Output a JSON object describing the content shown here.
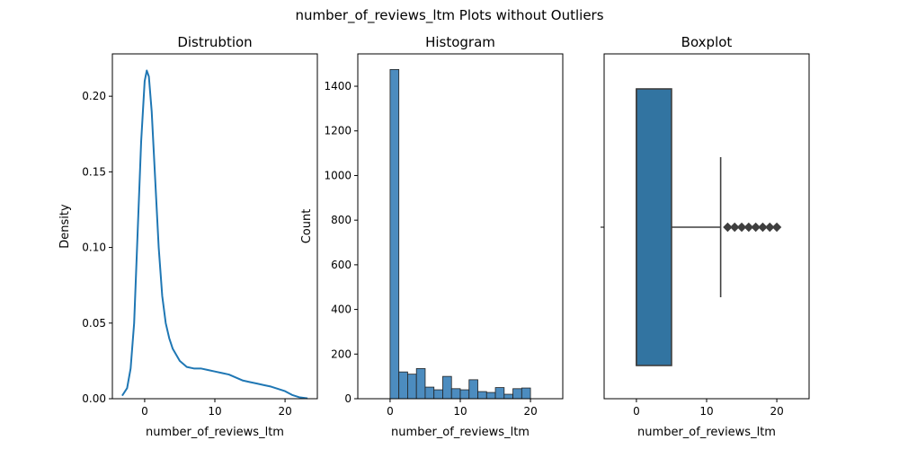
{
  "suptitle": "number_of_reviews_ltm Plots without Outliers",
  "colors": {
    "kde_line": "#1f77b4",
    "hist_bar": "#4c8cbf",
    "box_fill": "#3274a1",
    "box_edge": "#3f3f3f",
    "axes": "#000000"
  },
  "chart_data": [
    {
      "type": "line",
      "title": "Distrubtion",
      "xlabel": "number_of_reviews_ltm",
      "ylabel": "Density",
      "xlim": [
        -4.6,
        24.6
      ],
      "ylim": [
        0,
        0.228
      ],
      "xticks": [
        0,
        10,
        20
      ],
      "yticks": [
        0.0,
        0.05,
        0.1,
        0.15,
        0.2
      ],
      "ytick_labels": [
        "0.00",
        "0.05",
        "0.10",
        "0.15",
        "0.20"
      ],
      "series": [
        {
          "x": [
            -3.2,
            -2.5,
            -2,
            -1.5,
            -1,
            -0.5,
            0,
            0.3,
            0.6,
            1,
            1.5,
            2,
            2.5,
            3,
            3.5,
            4,
            5,
            6,
            7,
            8,
            9,
            10,
            11,
            12,
            13,
            14,
            15,
            16,
            17,
            18,
            19,
            20,
            21,
            22,
            23.2
          ],
          "y": [
            0.002,
            0.007,
            0.02,
            0.05,
            0.11,
            0.17,
            0.21,
            0.217,
            0.213,
            0.19,
            0.145,
            0.1,
            0.068,
            0.05,
            0.04,
            0.033,
            0.025,
            0.021,
            0.02,
            0.02,
            0.019,
            0.018,
            0.017,
            0.016,
            0.014,
            0.012,
            0.011,
            0.01,
            0.009,
            0.008,
            0.0065,
            0.005,
            0.0025,
            0.001,
            0.0002
          ]
        }
      ]
    },
    {
      "type": "bar",
      "title": "Histogram",
      "xlabel": "number_of_reviews_ltm",
      "ylabel": "Count",
      "xlim": [
        -4.6,
        24.6
      ],
      "ylim": [
        0,
        1545
      ],
      "xticks": [
        0,
        10,
        20
      ],
      "yticks": [
        0,
        200,
        400,
        600,
        800,
        1000,
        1200,
        1400
      ],
      "bin_edges": [
        0,
        1.25,
        2.5,
        3.75,
        5,
        6.25,
        7.5,
        8.75,
        10,
        11.25,
        12.5,
        13.75,
        15,
        16.25,
        17.5,
        18.75,
        20
      ],
      "values": [
        1475,
        120,
        110,
        135,
        52,
        40,
        100,
        45,
        40,
        85,
        32,
        28,
        50,
        20,
        45,
        48
      ]
    },
    {
      "type": "box",
      "title": "Boxplot",
      "xlabel": "number_of_reviews_ltm",
      "xlim": [
        -4.6,
        24.6
      ],
      "xticks": [
        0,
        10,
        20
      ],
      "q1": 0,
      "median": 0,
      "q3": 5,
      "whisker_low": 0,
      "whisker_high": 12,
      "outliers": [
        13,
        14,
        15,
        16,
        17,
        18,
        19,
        20
      ]
    }
  ]
}
